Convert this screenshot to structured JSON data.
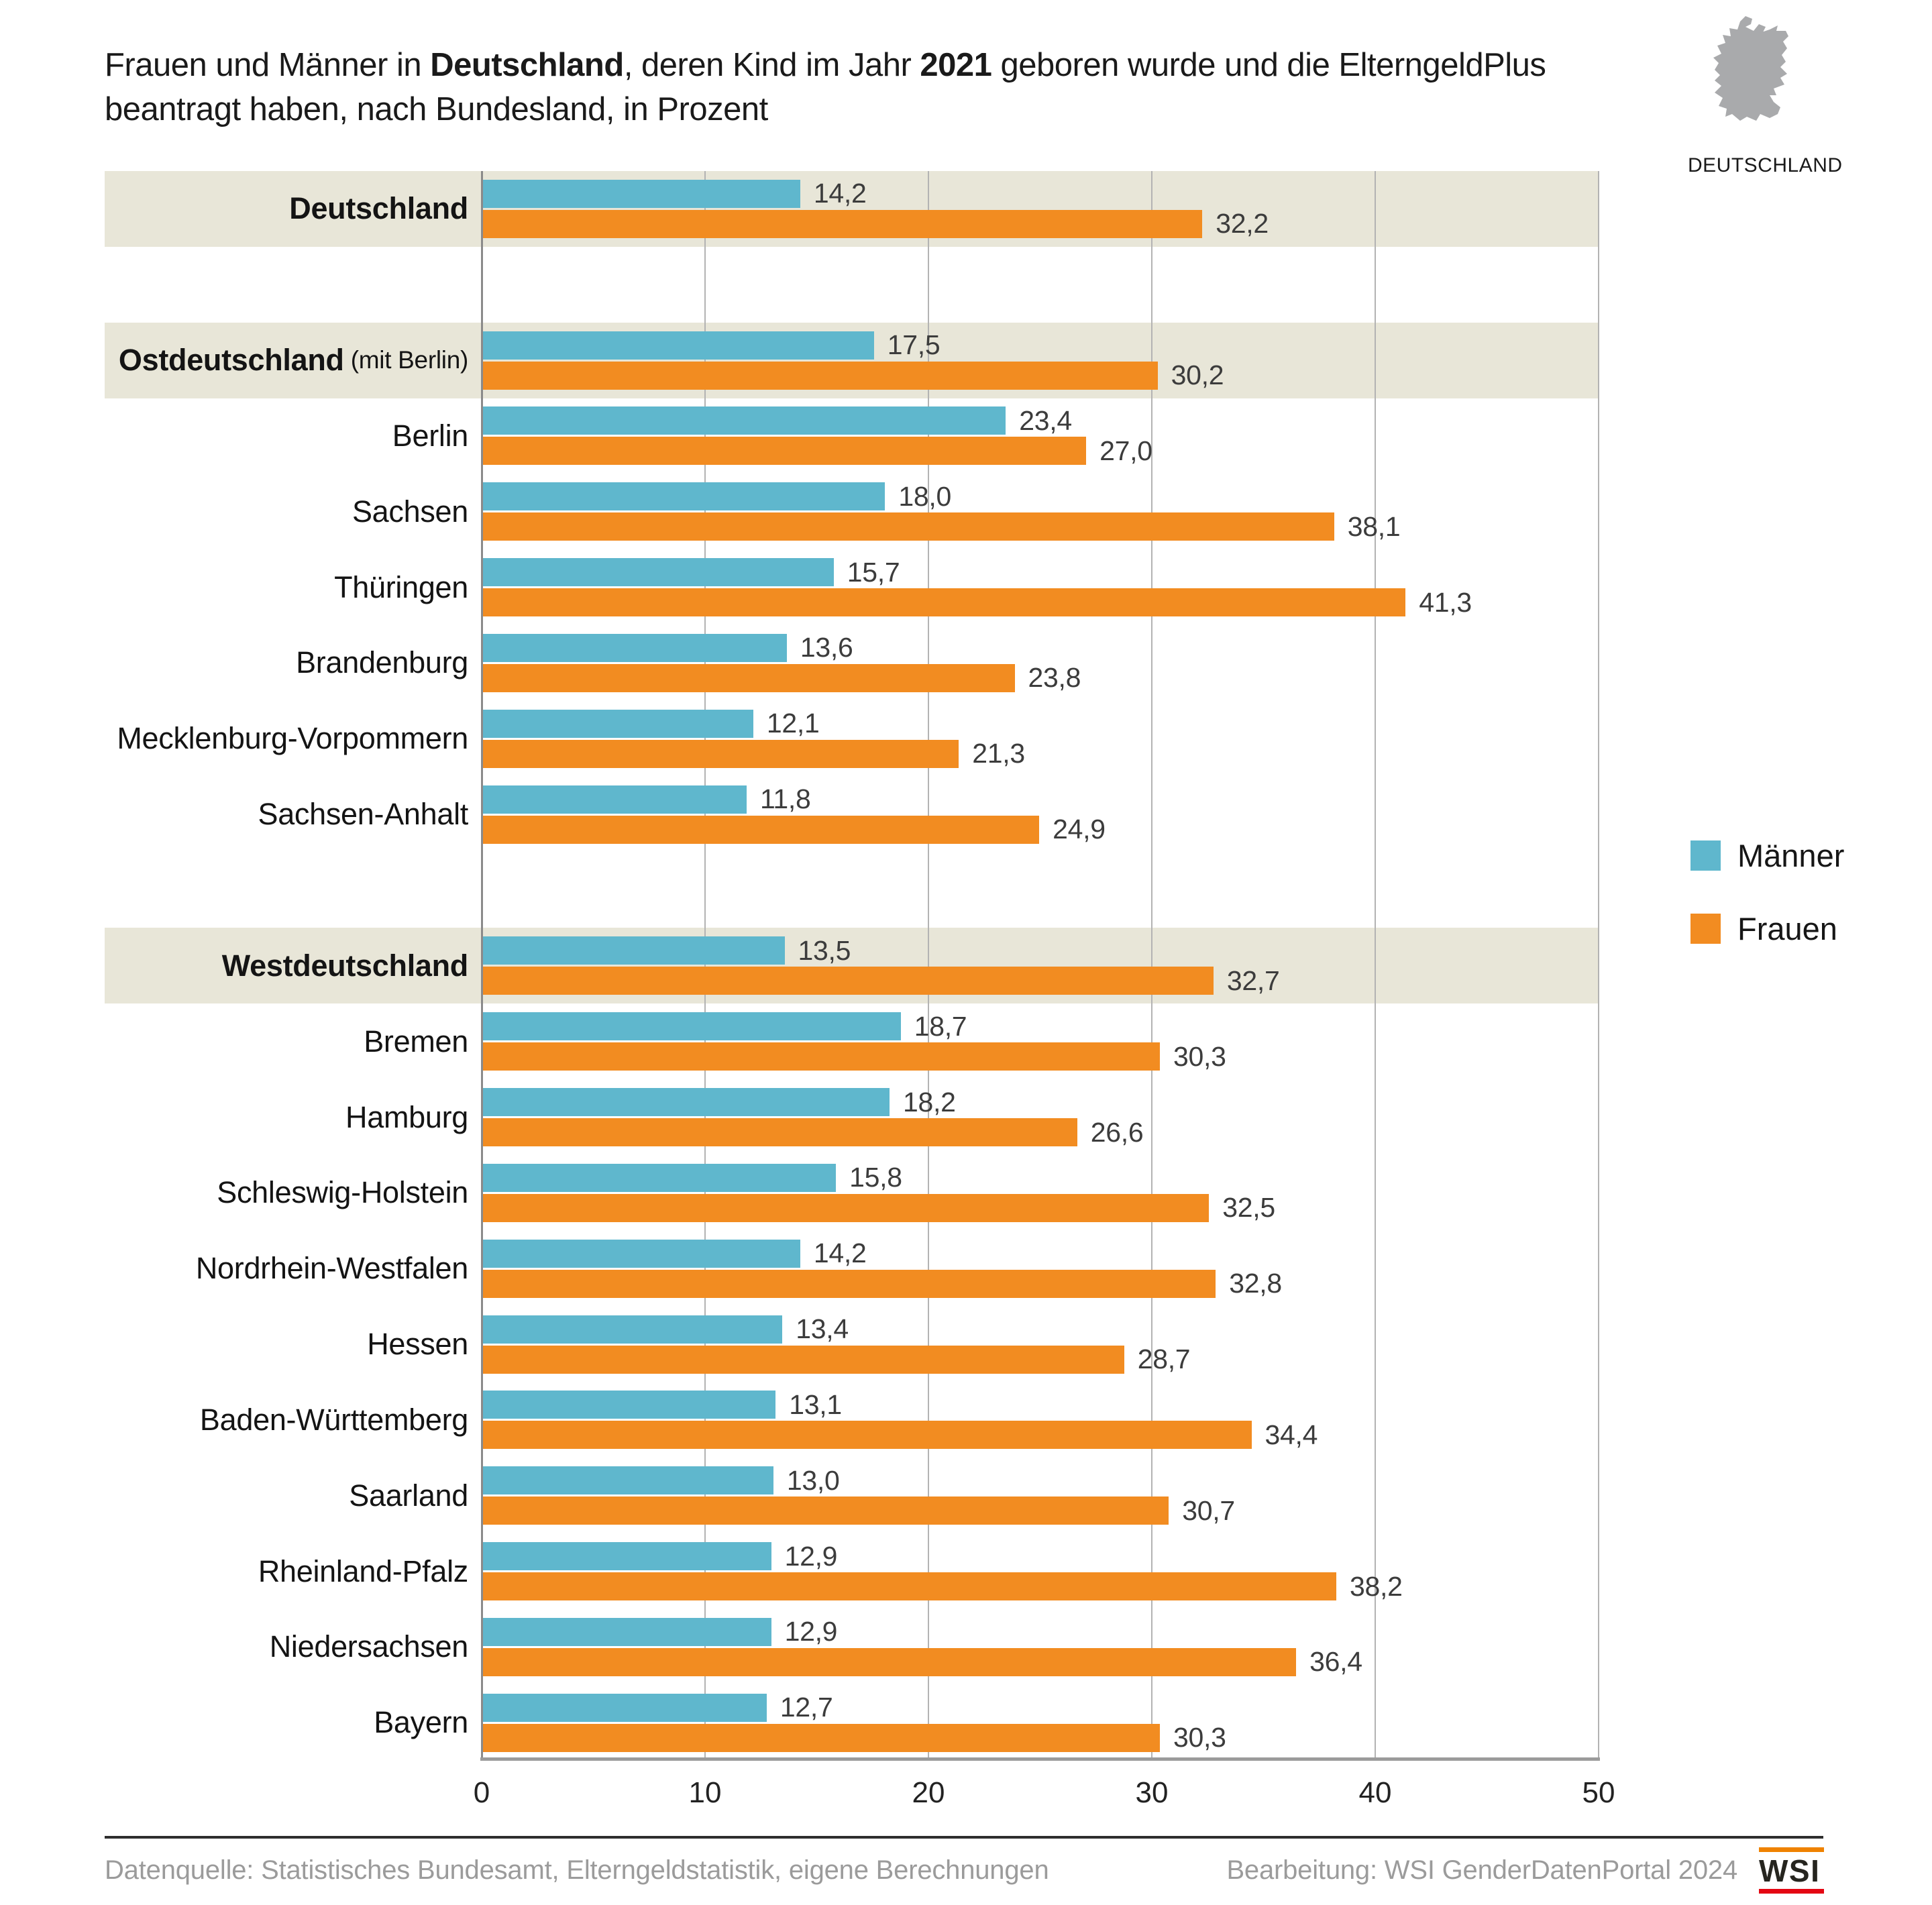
{
  "title": {
    "parts": [
      {
        "text": "Frauen und Männer in ",
        "bold": false
      },
      {
        "text": "Deutschland",
        "bold": true
      },
      {
        "text": ", deren Kind im Jahr ",
        "bold": false
      },
      {
        "text": "2021",
        "bold": true
      },
      {
        "text": " geboren wurde und die ElterngeldPlus",
        "bold": false
      },
      {
        "break": true
      },
      {
        "text": "beantragt haben, nach Bundesland, in Prozent",
        "bold": false
      }
    ]
  },
  "map_badge": {
    "label": "DEUTSCHLAND"
  },
  "legend": [
    {
      "label": "Männer",
      "color": "#5fb7cd"
    },
    {
      "label": "Frauen",
      "color": "#f28c21"
    }
  ],
  "chart_data": {
    "type": "bar",
    "orientation": "horizontal",
    "unit": "Prozent",
    "xlim": [
      0,
      50
    ],
    "xticks": [
      "0",
      "10",
      "20",
      "30",
      "40",
      "50"
    ],
    "grid": true,
    "legend_position": "right",
    "series_names": [
      "Männer",
      "Frauen"
    ],
    "rows": [
      {
        "label": "Deutschland",
        "men": 14.2,
        "women": 32.2,
        "highlight": true
      },
      {
        "gap": true
      },
      {
        "label": "Ostdeutschland",
        "sub": "(mit Berlin)",
        "men": 17.5,
        "women": 30.2,
        "highlight": true
      },
      {
        "label": "Berlin",
        "men": 23.4,
        "women": 27.0
      },
      {
        "label": "Sachsen",
        "men": 18.0,
        "women": 38.1
      },
      {
        "label": "Thüringen",
        "men": 15.7,
        "women": 41.3
      },
      {
        "label": "Brandenburg",
        "men": 13.6,
        "women": 23.8
      },
      {
        "label": "Mecklenburg-Vorpommern",
        "men": 12.1,
        "women": 21.3
      },
      {
        "label": "Sachsen-Anhalt",
        "men": 11.8,
        "women": 24.9
      },
      {
        "gap": true
      },
      {
        "label": "Westdeutschland",
        "men": 13.5,
        "women": 32.7,
        "highlight": true
      },
      {
        "label": "Bremen",
        "men": 18.7,
        "women": 30.3
      },
      {
        "label": "Hamburg",
        "men": 18.2,
        "women": 26.6
      },
      {
        "label": "Schleswig-Holstein",
        "men": 15.8,
        "women": 32.5
      },
      {
        "label": "Nordrhein-Westfalen",
        "men": 14.2,
        "women": 32.8
      },
      {
        "label": "Hessen",
        "men": 13.4,
        "women": 28.7
      },
      {
        "label": "Baden-Württemberg",
        "men": 13.1,
        "women": 34.4
      },
      {
        "label": "Saarland",
        "men": 13.0,
        "women": 30.7
      },
      {
        "label": "Rheinland-Pfalz",
        "men": 12.9,
        "women": 38.2
      },
      {
        "label": "Niedersachsen",
        "men": 12.9,
        "women": 36.4
      },
      {
        "label": "Bayern",
        "men": 12.7,
        "women": 30.3
      }
    ]
  },
  "footer": {
    "source": "Datenquelle: Statistisches Bundesamt, Elterngeldstatistik, eigene Berechnungen",
    "credit": "Bearbeitung: WSI GenderDatenPortal 2024",
    "logo_text": "WSI"
  },
  "colors": {
    "men": "#5fb7cd",
    "women": "#f28c21",
    "highlight_band": "#e8e6d8",
    "grid": "#b3b3b3",
    "axis": "#9b9b9b",
    "value_text": "#3c3c3c",
    "footer_text": "#9b9b9b",
    "logo_orange": "#ef8200",
    "logo_red": "#e40613",
    "map_gray": "#a9aaac"
  }
}
